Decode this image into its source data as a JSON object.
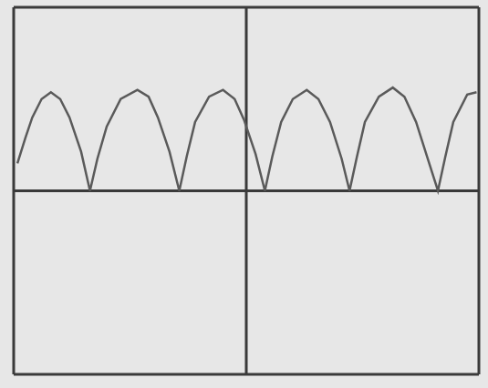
{
  "chart_data": {
    "type": "line",
    "x": [
      0.08,
      0.25,
      0.4,
      0.6,
      0.8,
      1.0,
      1.2,
      1.45,
      1.64,
      1.8,
      2.0,
      2.3,
      2.66,
      2.9,
      3.1,
      3.35,
      3.56,
      3.72,
      3.9,
      4.2,
      4.5,
      4.75,
      4.95,
      5.2,
      5.4,
      5.56,
      5.75,
      6.0,
      6.3,
      6.55,
      6.8,
      7.05,
      7.22,
      7.38,
      7.55,
      7.85,
      8.15,
      8.4,
      8.65,
      8.9,
      9.12,
      9.28,
      9.45,
      9.75,
      9.95
    ],
    "values": [
      0.6,
      1.15,
      1.6,
      2.0,
      2.15,
      2.0,
      1.6,
      0.85,
      0,
      0.7,
      1.4,
      2.0,
      2.2,
      2.05,
      1.6,
      0.85,
      0,
      0.75,
      1.5,
      2.05,
      2.2,
      2.0,
      1.55,
      0.8,
      0,
      0.75,
      1.5,
      2.0,
      2.2,
      2.0,
      1.5,
      0.7,
      0,
      0.75,
      1.5,
      2.05,
      2.25,
      2.05,
      1.5,
      0.7,
      0,
      0.75,
      1.5,
      2.1,
      2.15
    ],
    "xlim": [
      0,
      10
    ],
    "ylim": [
      -4,
      4
    ],
    "xticks": [
      0,
      1,
      2,
      3,
      4,
      5,
      6,
      7,
      8,
      9,
      10
    ],
    "yticks": [
      -4,
      -3,
      -2,
      -1,
      0,
      1,
      2,
      3,
      4
    ],
    "grid": true,
    "tick_labels": false,
    "color": "#5a5a5a"
  }
}
